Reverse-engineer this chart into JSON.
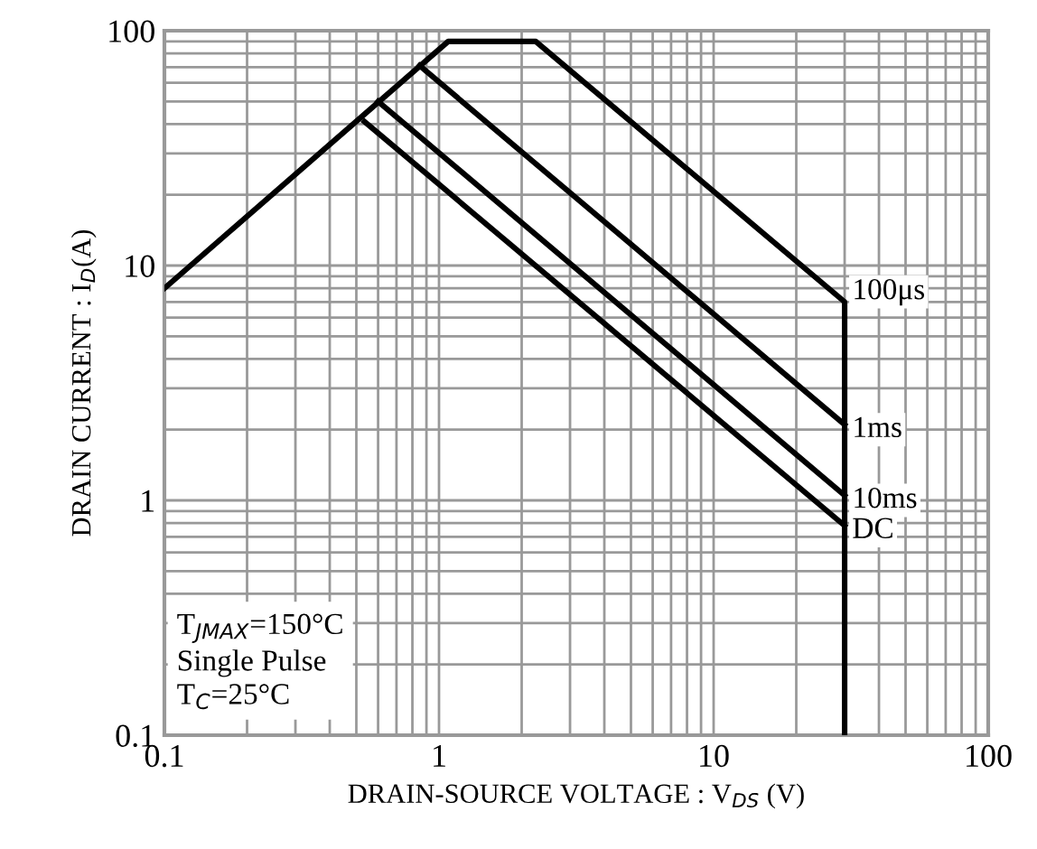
{
  "chart_data": {
    "type": "line",
    "xlabel": "DRAIN-SOURCE VOLTAGE : V$_{DS}$ (V)",
    "ylabel": "DRAIN CURRENT : I$_{D}$(A)",
    "series": [
      {
        "name": "100μs",
        "color": "#000000",
        "x": [
          0.1,
          1.08,
          2.25,
          30,
          30
        ],
        "values": [
          8,
          90,
          90,
          7,
          0.1
        ]
      },
      {
        "name": "1ms",
        "color": "#000000",
        "x": [
          0.85,
          30
        ],
        "values": [
          71,
          2.1
        ]
      },
      {
        "name": "10ms",
        "color": "#000000",
        "x": [
          0.6,
          30
        ],
        "values": [
          50,
          1.05
        ]
      },
      {
        "name": "DC",
        "color": "#000000",
        "x": [
          0.535,
          30
        ],
        "values": [
          41,
          0.78
        ]
      }
    ],
    "log": "xy",
    "xlim": [
      0.1,
      100
    ],
    "ylim": [
      0.1,
      100
    ],
    "xticks": [
      0.1,
      1,
      10,
      100
    ],
    "yticks": [
      0.1,
      1,
      10,
      100
    ],
    "grid": true,
    "marker": "none",
    "line_style": "solid",
    "legend": false,
    "annotations": [
      "T$_{JMAX}$=150°C\nSingle Pulse\nT$_{C}$=25°C"
    ]
  }
}
